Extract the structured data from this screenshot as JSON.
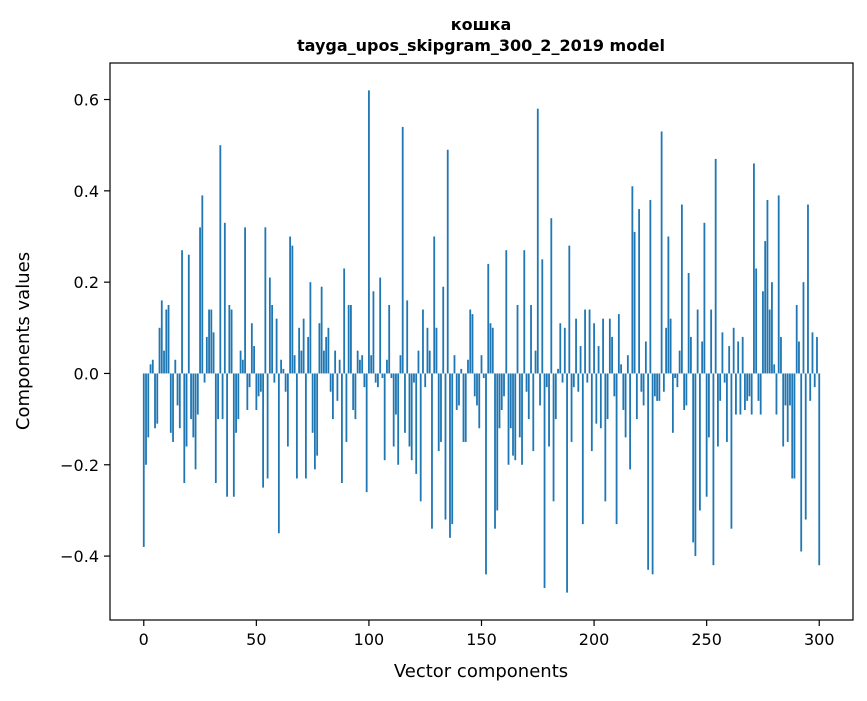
{
  "chart_data": {
    "type": "bar",
    "title": "кошка",
    "subtitle": "tayga_upos_skipgram_300_2_2019 model",
    "xlabel": "Vector components",
    "ylabel": "Components values",
    "xlim": [
      -15,
      315
    ],
    "ylim": [
      -0.54,
      0.68
    ],
    "xticks": [
      0,
      50,
      100,
      150,
      200,
      250,
      300
    ],
    "yticks": [
      -0.4,
      -0.2,
      0.0,
      0.2,
      0.4,
      0.6
    ],
    "ytick_labels": [
      "−0.4",
      "−0.2",
      "0.0",
      "0.2",
      "0.4",
      "0.6"
    ],
    "grid": false,
    "bar_color": "#1f77b4",
    "values": [
      -0.38,
      -0.2,
      -0.14,
      0.02,
      0.03,
      -0.12,
      -0.11,
      0.1,
      0.16,
      0.05,
      0.14,
      0.15,
      -0.13,
      -0.15,
      0.03,
      -0.07,
      -0.12,
      0.27,
      -0.24,
      -0.16,
      0.26,
      -0.1,
      -0.14,
      -0.21,
      -0.09,
      0.32,
      0.39,
      -0.02,
      0.08,
      0.14,
      0.14,
      0.09,
      -0.24,
      -0.1,
      0.5,
      -0.1,
      0.33,
      -0.27,
      0.15,
      0.14,
      -0.27,
      -0.13,
      -0.1,
      0.05,
      0.03,
      0.32,
      -0.08,
      -0.03,
      0.11,
      0.06,
      -0.08,
      -0.05,
      -0.04,
      -0.25,
      0.32,
      -0.23,
      0.21,
      0.15,
      -0.02,
      0.12,
      -0.35,
      0.03,
      0.01,
      -0.04,
      -0.16,
      0.3,
      0.28,
      0.04,
      -0.23,
      0.1,
      0.05,
      0.12,
      -0.23,
      0.08,
      0.2,
      -0.13,
      -0.21,
      -0.18,
      0.11,
      0.19,
      0.05,
      0.08,
      0.1,
      -0.04,
      -0.1,
      0.05,
      -0.06,
      0.03,
      -0.24,
      0.23,
      -0.15,
      0.15,
      0.15,
      -0.08,
      -0.1,
      0.05,
      0.03,
      0.04,
      -0.03,
      -0.26,
      0.62,
      0.04,
      0.18,
      -0.02,
      -0.03,
      0.21,
      -0.01,
      -0.19,
      0.03,
      0.15,
      -0.01,
      -0.16,
      -0.09,
      -0.2,
      0.04,
      0.54,
      -0.13,
      0.16,
      -0.16,
      -0.19,
      -0.02,
      -0.22,
      0.05,
      -0.28,
      0.14,
      -0.03,
      0.1,
      0.05,
      -0.34,
      0.3,
      0.1,
      -0.17,
      -0.15,
      0.19,
      -0.32,
      0.49,
      -0.36,
      -0.33,
      0.04,
      -0.08,
      -0.07,
      0.01,
      -0.15,
      -0.15,
      0.03,
      0.14,
      0.13,
      -0.05,
      -0.07,
      -0.12,
      0.04,
      -0.01,
      -0.44,
      0.24,
      0.11,
      0.1,
      -0.34,
      -0.3,
      -0.12,
      -0.08,
      -0.05,
      0.27,
      -0.2,
      -0.12,
      -0.18,
      -0.19,
      0.15,
      -0.14,
      -0.2,
      0.27,
      -0.04,
      -0.1,
      0.15,
      -0.17,
      0.05,
      0.58,
      -0.07,
      0.25,
      -0.47,
      -0.03,
      -0.16,
      0.34,
      -0.28,
      -0.1,
      0.01,
      0.11,
      -0.02,
      0.1,
      -0.48,
      0.28,
      -0.15,
      -0.03,
      0.12,
      -0.04,
      0.06,
      -0.33,
      0.14,
      -0.02,
      0.14,
      -0.17,
      0.11,
      -0.11,
      0.06,
      -0.12,
      0.12,
      -0.28,
      -0.1,
      0.12,
      0.08,
      -0.05,
      -0.33,
      0.13,
      0.02,
      -0.08,
      -0.14,
      0.04,
      -0.21,
      0.41,
      0.31,
      -0.1,
      0.36,
      -0.04,
      -0.07,
      0.07,
      -0.43,
      0.38,
      -0.44,
      -0.05,
      -0.06,
      -0.06,
      0.53,
      -0.04,
      0.1,
      0.3,
      0.12,
      -0.13,
      -0.01,
      -0.03,
      0.05,
      0.37,
      -0.08,
      -0.07,
      0.22,
      0.08,
      -0.37,
      -0.4,
      0.14,
      -0.3,
      0.07,
      0.33,
      -0.27,
      -0.14,
      0.14,
      -0.42,
      0.47,
      -0.16,
      -0.06,
      0.09,
      -0.02,
      -0.15,
      0.06,
      -0.34,
      0.1,
      -0.09,
      0.07,
      -0.09,
      0.08,
      -0.08,
      -0.06,
      -0.05,
      -0.09,
      0.46,
      0.23,
      -0.06,
      -0.09,
      0.18,
      0.29,
      0.38,
      0.14,
      0.2,
      0.02,
      -0.09,
      0.39,
      0.08,
      -0.16,
      -0.07,
      -0.15,
      -0.07,
      -0.23,
      -0.23,
      0.15,
      0.07,
      -0.39,
      0.2,
      -0.32,
      0.37,
      -0.06,
      0.09,
      -0.03,
      0.08,
      -0.42
    ]
  }
}
